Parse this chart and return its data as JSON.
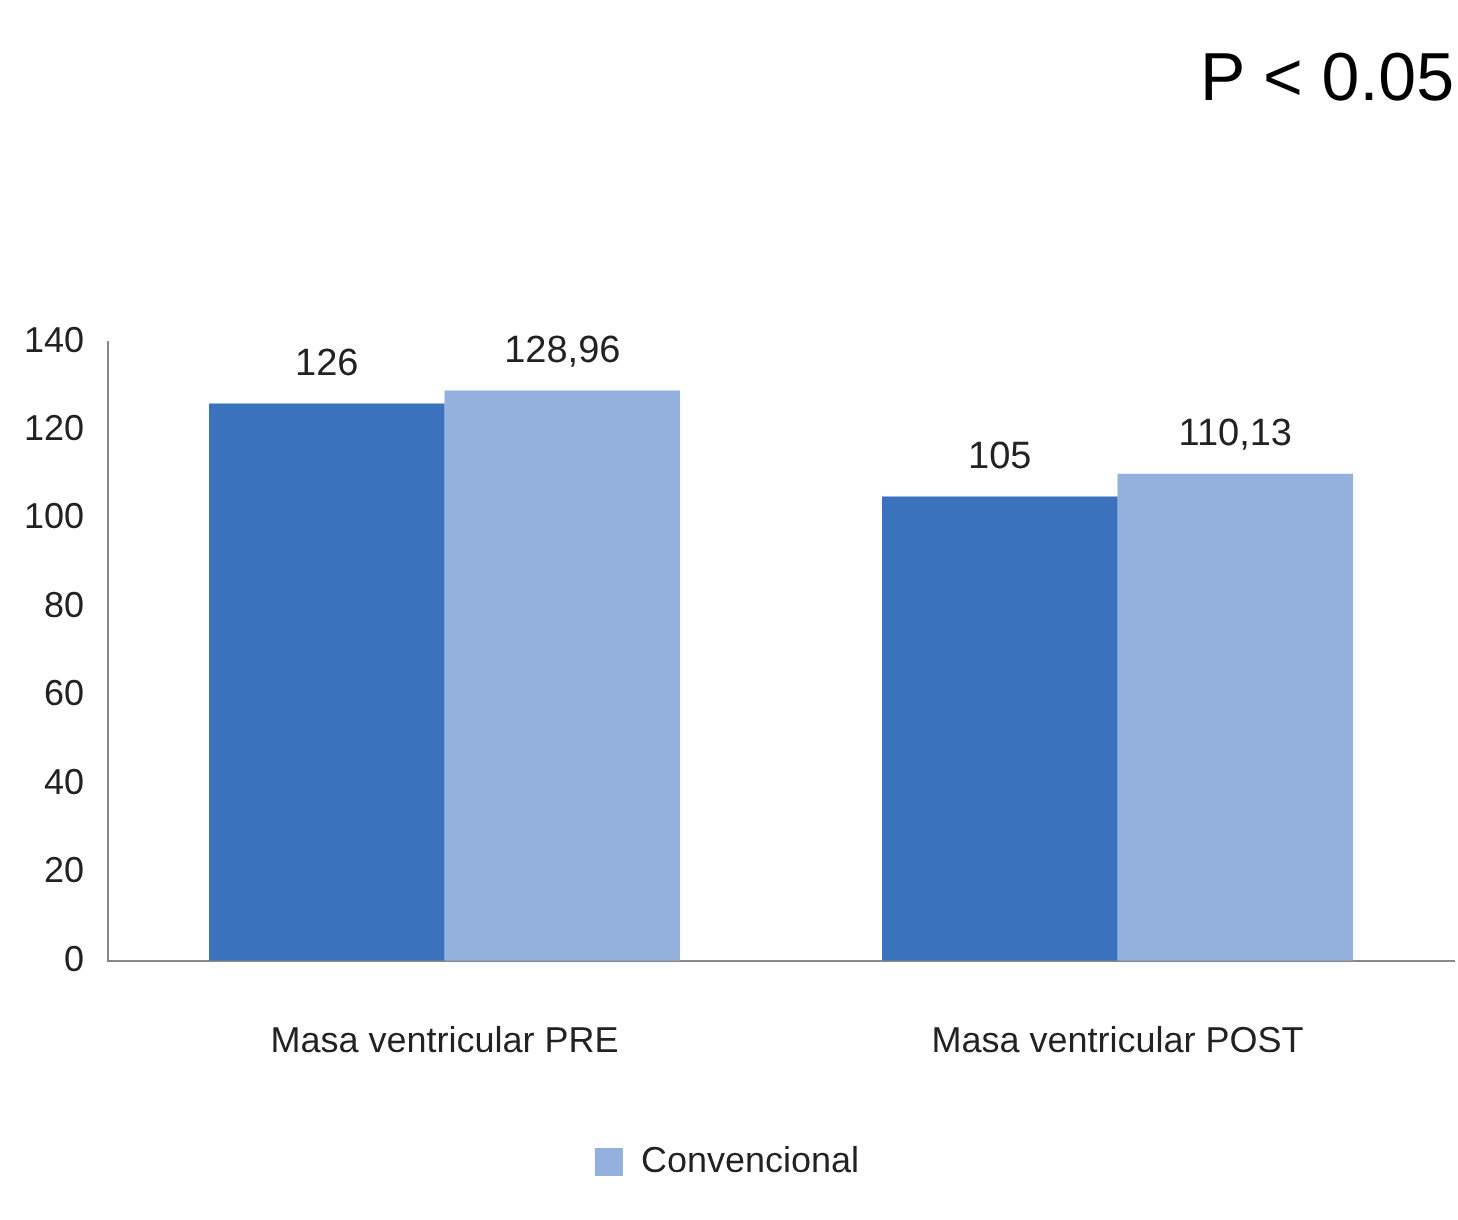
{
  "chart_data": {
    "type": "bar",
    "title": "P < 0.05",
    "categories": [
      "Masa ventricular PRE",
      "Masa ventricular POST"
    ],
    "series": [
      {
        "color": "#3a72bd",
        "values": [
          126,
          105
        ],
        "value_labels": [
          "126",
          "105"
        ]
      },
      {
        "name": "Convencional",
        "color": "#93b1dc",
        "values": [
          128.96,
          110.13
        ],
        "value_labels": [
          "128,96",
          "110,13"
        ]
      }
    ],
    "ylim": [
      0,
      140
    ],
    "yticks": [
      0,
      20,
      40,
      60,
      80,
      100,
      120,
      140
    ],
    "grid": false,
    "legend": "bottom"
  }
}
